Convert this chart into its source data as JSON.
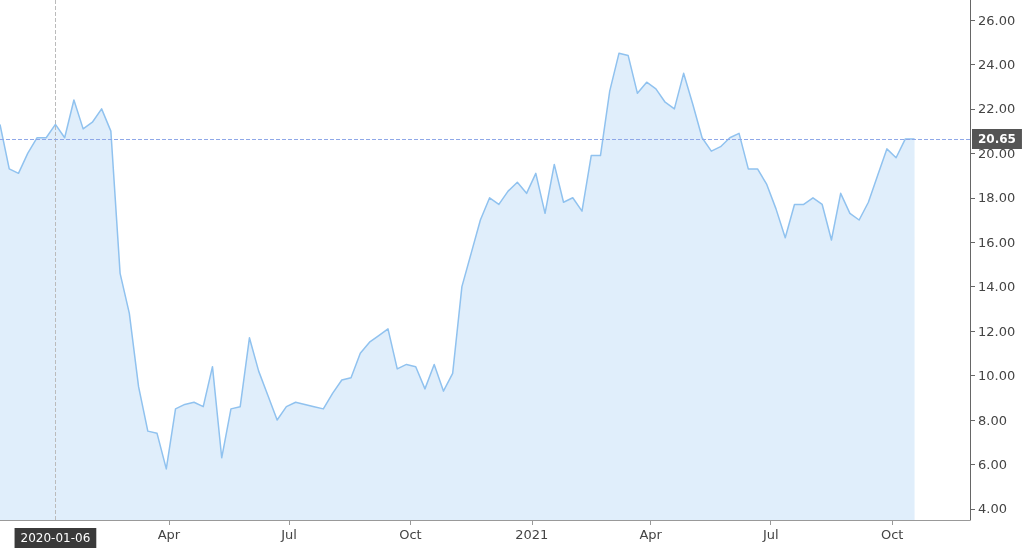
{
  "chart_data": {
    "type": "area",
    "x": [
      "2019-11-25",
      "2019-12-02",
      "2019-12-09",
      "2019-12-16",
      "2019-12-23",
      "2019-12-30",
      "2020-01-06",
      "2020-01-13",
      "2020-01-20",
      "2020-01-27",
      "2020-02-03",
      "2020-02-10",
      "2020-02-17",
      "2020-02-24",
      "2020-03-02",
      "2020-03-09",
      "2020-03-16",
      "2020-03-23",
      "2020-03-30",
      "2020-04-06",
      "2020-04-13",
      "2020-04-20",
      "2020-04-27",
      "2020-05-04",
      "2020-05-11",
      "2020-05-18",
      "2020-05-25",
      "2020-06-01",
      "2020-06-08",
      "2020-06-15",
      "2020-06-22",
      "2020-06-29",
      "2020-07-06",
      "2020-07-13",
      "2020-07-20",
      "2020-07-27",
      "2020-08-03",
      "2020-08-10",
      "2020-08-17",
      "2020-08-24",
      "2020-08-31",
      "2020-09-07",
      "2020-09-14",
      "2020-09-21",
      "2020-09-28",
      "2020-10-05",
      "2020-10-12",
      "2020-10-19",
      "2020-10-26",
      "2020-11-02",
      "2020-11-09",
      "2020-11-16",
      "2020-11-23",
      "2020-11-30",
      "2020-12-07",
      "2020-12-14",
      "2020-12-21",
      "2020-12-28",
      "2021-01-04",
      "2021-01-11",
      "2021-01-18",
      "2021-01-25",
      "2021-02-01",
      "2021-02-08",
      "2021-02-15",
      "2021-02-22",
      "2021-03-01",
      "2021-03-08",
      "2021-03-15",
      "2021-03-22",
      "2021-03-29",
      "2021-04-05",
      "2021-04-12",
      "2021-04-19",
      "2021-04-26",
      "2021-05-03",
      "2021-05-10",
      "2021-05-17",
      "2021-05-24",
      "2021-05-31",
      "2021-06-07",
      "2021-06-14",
      "2021-06-21",
      "2021-06-28",
      "2021-07-05",
      "2021-07-12",
      "2021-07-19",
      "2021-07-26",
      "2021-08-02",
      "2021-08-09",
      "2021-08-16",
      "2021-08-23",
      "2021-08-30",
      "2021-09-06",
      "2021-09-13",
      "2021-09-20",
      "2021-09-27",
      "2021-10-04",
      "2021-10-11",
      "2021-10-18"
    ],
    "series": [
      {
        "color": "#90c2ef",
        "values": [
          21.3,
          19.3,
          19.1,
          20.0,
          20.7,
          20.7,
          21.3,
          20.7,
          22.4,
          21.1,
          21.4,
          22.0,
          21.0,
          14.6,
          12.8,
          9.5,
          7.5,
          7.4,
          5.8,
          8.5,
          8.7,
          8.8,
          8.6,
          10.4,
          6.3,
          8.5,
          8.6,
          11.7,
          10.2,
          9.1,
          8.0,
          8.6,
          8.8,
          8.7,
          8.6,
          8.5,
          9.2,
          9.8,
          9.9,
          11.0,
          11.5,
          11.8,
          12.1,
          10.3,
          10.5,
          10.4,
          9.4,
          10.5,
          9.3,
          10.1,
          14.0,
          15.5,
          17.0,
          18.0,
          17.7,
          18.3,
          18.7,
          18.2,
          19.1,
          17.3,
          19.5,
          17.8,
          18.0,
          17.4,
          19.9,
          19.9,
          22.8,
          24.5,
          24.4,
          22.7,
          23.2,
          22.9,
          22.3,
          22.0,
          23.6,
          22.2,
          20.7,
          20.1,
          20.3,
          20.7,
          20.9,
          19.3,
          19.3,
          18.6,
          17.5,
          16.2,
          17.7,
          17.7,
          18.0,
          17.7,
          16.1,
          18.2,
          17.3,
          17.0,
          17.8,
          19.0,
          20.2,
          19.8,
          20.65,
          20.65
        ]
      }
    ],
    "xlim": [
      "2019-11-25",
      "2021-11-29"
    ],
    "xticks": [
      {
        "value": "2020-04-01",
        "label": "Apr"
      },
      {
        "value": "2020-07-01",
        "label": "Jul"
      },
      {
        "value": "2020-10-01",
        "label": "Oct"
      },
      {
        "value": "2021-01-01",
        "label": "2021"
      },
      {
        "value": "2021-04-01",
        "label": "Apr"
      },
      {
        "value": "2021-07-01",
        "label": "Jul"
      },
      {
        "value": "2021-10-01",
        "label": "Oct"
      }
    ],
    "ylim": [
      3.5,
      26.9
    ],
    "yticks": [
      {
        "value": 4,
        "label": "4.00"
      },
      {
        "value": 6,
        "label": "6.00"
      },
      {
        "value": 8,
        "label": "8.00"
      },
      {
        "value": 10,
        "label": "10.00"
      },
      {
        "value": 12,
        "label": "12.00"
      },
      {
        "value": 14,
        "label": "14.00"
      },
      {
        "value": 16,
        "label": "16.00"
      },
      {
        "value": 18,
        "label": "18.00"
      },
      {
        "value": 20,
        "label": "20.00"
      },
      {
        "value": 22,
        "label": "22.00"
      },
      {
        "value": 24,
        "label": "24.00"
      },
      {
        "value": 26,
        "label": "26.00"
      }
    ],
    "ref_lines": [
      {
        "axis": "x",
        "value": "2020-01-06",
        "label": "2020-01-06",
        "color": "#bbbbbb",
        "line_style": "dashed"
      },
      {
        "axis": "y",
        "value": 20.65,
        "label": "20.65",
        "color": "#8fa8e8",
        "line_style": "dashed"
      }
    ],
    "grid": false,
    "marker": "none"
  }
}
